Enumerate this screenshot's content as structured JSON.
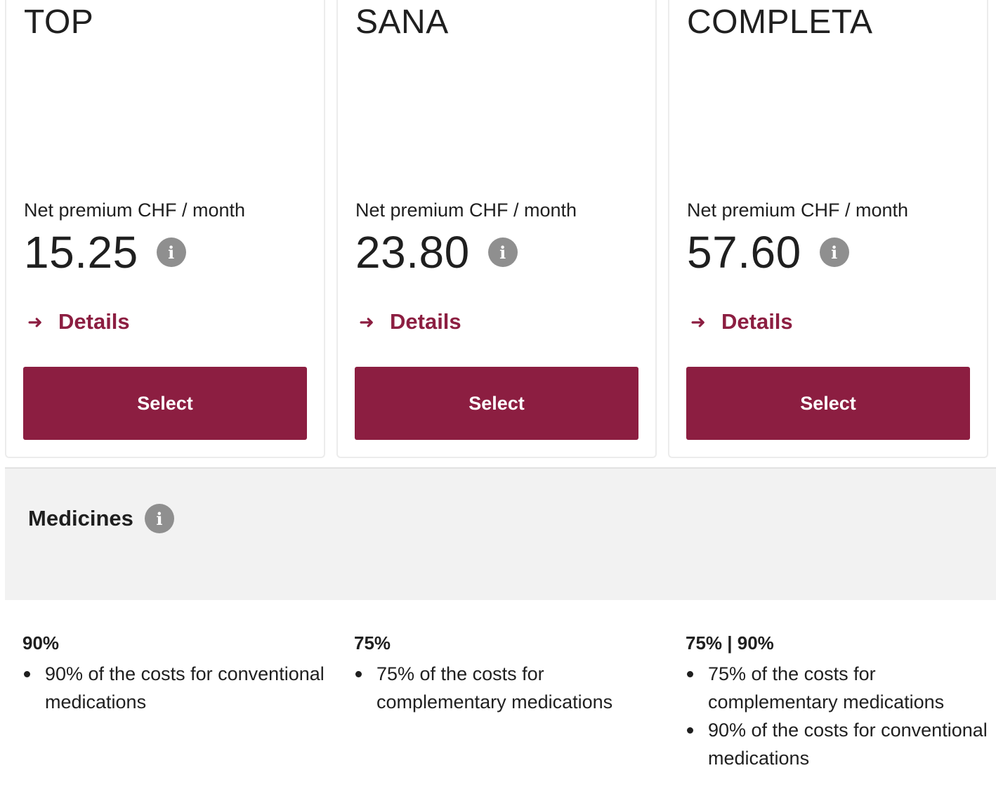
{
  "plans": [
    {
      "name": "TOP",
      "premium_label": "Net premium CHF / month",
      "price": "15.25",
      "details_label": "Details",
      "select_label": "Select"
    },
    {
      "name": "SANA",
      "premium_label": "Net premium CHF / month",
      "price": "23.80",
      "details_label": "Details",
      "select_label": "Select"
    },
    {
      "name": "COMPLETA",
      "premium_label": "Net premium CHF / month",
      "price": "57.60",
      "details_label": "Details",
      "select_label": "Select"
    }
  ],
  "icons": {
    "info": "info-icon",
    "arrow": "arrow-right-icon"
  },
  "info_glyph": "i",
  "arrow_glyph": "➜",
  "section": {
    "title": "Medicines",
    "columns": [
      {
        "value": "90%",
        "items": [
          "90% of the costs for conventional medications"
        ]
      },
      {
        "value": "75%",
        "items": [
          "75% of the costs for complementary medications"
        ]
      },
      {
        "value": "75% | 90%",
        "items": [
          "75% of the costs for complementary medications",
          "90% of the costs for conventional medications"
        ]
      }
    ]
  },
  "colors": {
    "accent": "#8c1e41",
    "info_icon": "#8f8f8f",
    "section_bg": "#f2f2f2"
  }
}
